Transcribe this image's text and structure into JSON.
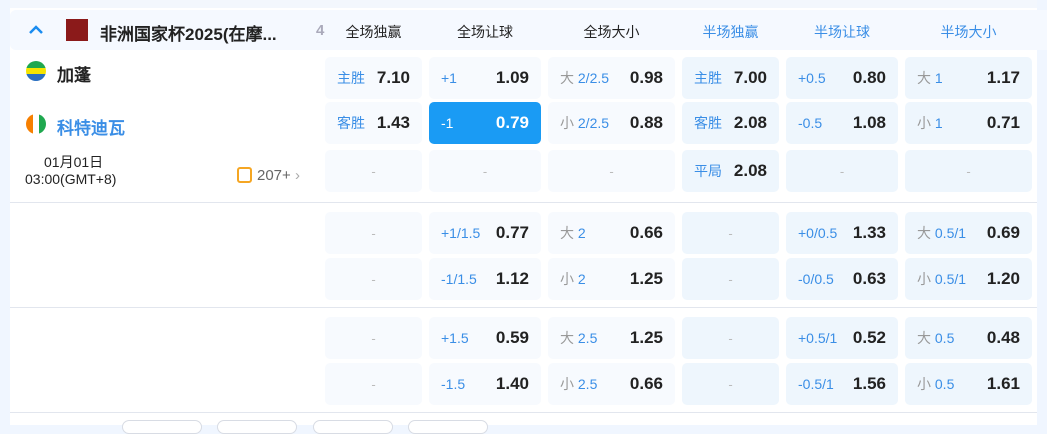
{
  "league": {
    "name": "非洲国家杯2025(在摩...",
    "count": "4"
  },
  "columns": [
    {
      "label": "全场独赢",
      "color": "#222222"
    },
    {
      "label": "全场让球",
      "color": "#222222"
    },
    {
      "label": "全场大小",
      "color": "#222222"
    },
    {
      "label": "半场独赢",
      "color": "#3a8ee6"
    },
    {
      "label": "半场让球",
      "color": "#3a8ee6"
    },
    {
      "label": "半场大小",
      "color": "#3a8ee6"
    }
  ],
  "match": {
    "home": "加蓬",
    "away": "科特迪瓦",
    "date": "01月01日",
    "time": "03:00(GMT+8)",
    "more": "207+"
  },
  "rows": [
    [
      {
        "l": "主胜",
        "v": "7.10"
      },
      {
        "l": "+1",
        "v": "1.09"
      },
      {
        "p": "大",
        "l": "2/2.5",
        "v": "0.98"
      },
      {
        "l": "主胜",
        "v": "7.00"
      },
      {
        "l": "+0.5",
        "v": "0.80"
      },
      {
        "p": "大",
        "l": "1",
        "v": "1.17"
      }
    ],
    [
      {
        "l": "客胜",
        "v": "1.43"
      },
      {
        "l": "-1",
        "v": "0.79",
        "selected": true
      },
      {
        "p": "小",
        "l": "2/2.5",
        "v": "0.88"
      },
      {
        "l": "客胜",
        "v": "2.08"
      },
      {
        "l": "-0.5",
        "v": "1.08"
      },
      {
        "p": "小",
        "l": "1",
        "v": "0.71"
      }
    ],
    [
      {
        "d": "-"
      },
      {
        "d": "-"
      },
      {
        "d": "-"
      },
      {
        "l": "平局",
        "v": "2.08"
      },
      {
        "d": "-"
      },
      {
        "d": "-"
      }
    ],
    [
      {
        "d": "-"
      },
      {
        "l": "+1/1.5",
        "v": "0.77"
      },
      {
        "p": "大",
        "l": "2",
        "v": "0.66"
      },
      {
        "d": "-"
      },
      {
        "l": "+0/0.5",
        "v": "1.33"
      },
      {
        "p": "大",
        "l": "0.5/1",
        "v": "0.69"
      }
    ],
    [
      {
        "d": "-"
      },
      {
        "l": "-1/1.5",
        "v": "1.12"
      },
      {
        "p": "小",
        "l": "2",
        "v": "1.25"
      },
      {
        "d": "-"
      },
      {
        "l": "-0/0.5",
        "v": "0.63"
      },
      {
        "p": "小",
        "l": "0.5/1",
        "v": "1.20"
      }
    ],
    [
      {
        "d": "-"
      },
      {
        "l": "+1.5",
        "v": "0.59"
      },
      {
        "p": "大",
        "l": "2.5",
        "v": "1.25"
      },
      {
        "d": "-"
      },
      {
        "l": "+0.5/1",
        "v": "0.52"
      },
      {
        "p": "大",
        "l": "0.5",
        "v": "0.48"
      }
    ],
    [
      {
        "d": "-"
      },
      {
        "l": "-1.5",
        "v": "1.40"
      },
      {
        "p": "小",
        "l": "2.5",
        "v": "0.66"
      },
      {
        "d": "-"
      },
      {
        "l": "-0.5/1",
        "v": "1.56"
      },
      {
        "p": "小",
        "l": "0.5",
        "v": "1.61"
      }
    ]
  ],
  "colors": {
    "accent": "#1a9bf4",
    "label": "#3a8ee6"
  }
}
